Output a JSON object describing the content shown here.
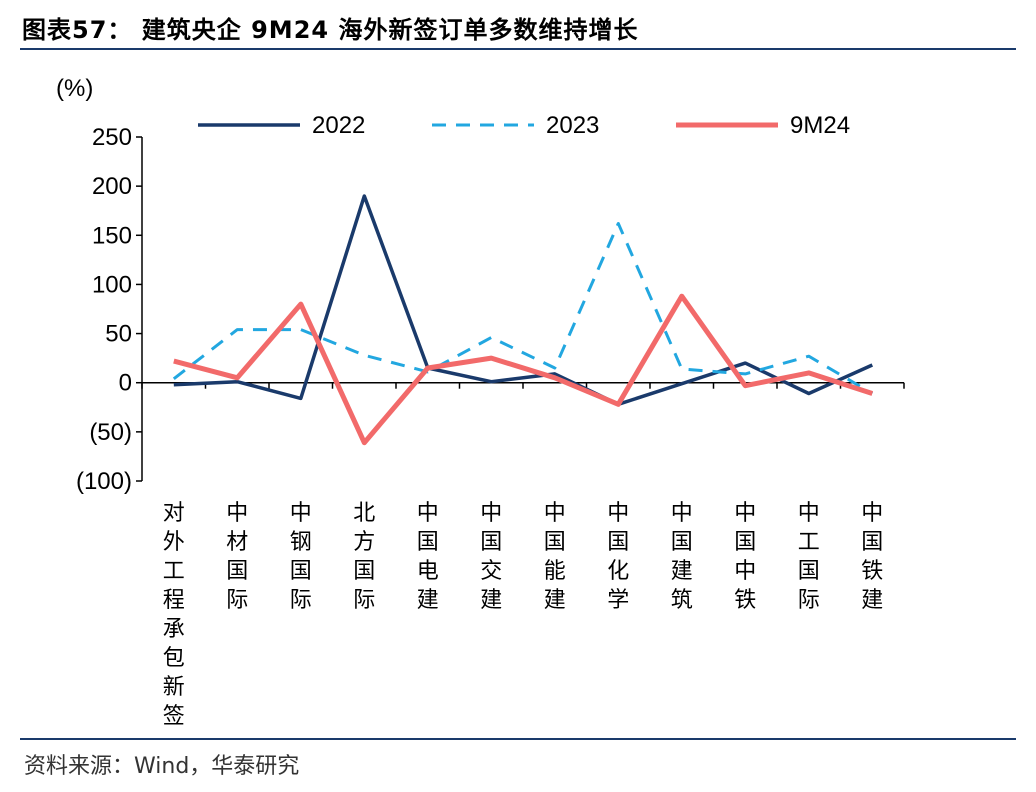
{
  "header": {
    "title": "图表57： 建筑央企 9M24 海外新签订单多数维持增长"
  },
  "footer": {
    "source": "资料来源：Wind，华泰研究"
  },
  "chart_data": {
    "type": "line",
    "title": "建筑央企 9M24 海外新签订单多数维持增长",
    "ylabel": "(%)",
    "xlabel": "",
    "ylim": [
      -100,
      250
    ],
    "yticks": [
      250,
      200,
      150,
      100,
      50,
      0,
      -50,
      -100
    ],
    "ytick_labels": [
      "250",
      "200",
      "150",
      "100",
      "50",
      "0",
      "(50)",
      "(100)"
    ],
    "legend_position": "top",
    "categories": [
      "对外工程承包新签",
      "中材国际",
      "中钢国际",
      "北方国际",
      "中国电建",
      "中国交建",
      "中国能建",
      "中国化学",
      "中国建筑",
      "中国中铁",
      "中工国际",
      "中国铁建"
    ],
    "series": [
      {
        "name": "2022",
        "color": "#1a3a6b",
        "dash": "solid",
        "width": 3.5,
        "values": [
          -2,
          1,
          -16,
          190,
          15,
          1,
          9,
          -22,
          -1,
          20,
          -11,
          18
        ]
      },
      {
        "name": "2023",
        "color": "#22a7e0",
        "dash": "dashed",
        "width": 3,
        "values": [
          4,
          54,
          54,
          28,
          11,
          46,
          15,
          162,
          14,
          9,
          27,
          -11
        ]
      },
      {
        "name": "9M24",
        "color": "#f26a6a",
        "dash": "solid",
        "width": 5,
        "values": [
          22,
          5,
          80,
          -61,
          15,
          25,
          5,
          -22,
          88,
          -3,
          10,
          -11
        ]
      }
    ]
  }
}
